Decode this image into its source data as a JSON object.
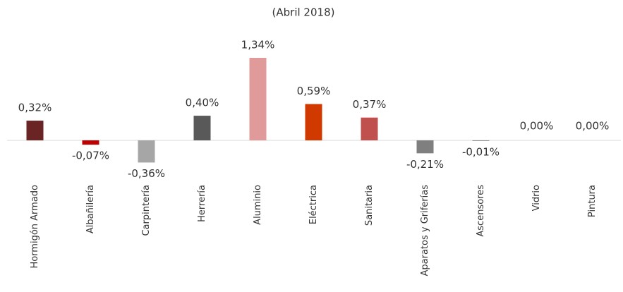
{
  "chart_data": {
    "type": "bar",
    "title": "(Abril 2018)",
    "categories": [
      "Hormigón Armado",
      "Albañilería",
      "Carpintería",
      "Herrería",
      "Aluminio",
      "Eléctrica",
      "Sanitaria",
      "Aparatos y Griferías",
      "Ascensores",
      "Vidrio",
      "Pintura"
    ],
    "values": [
      0.32,
      -0.07,
      -0.36,
      0.4,
      1.34,
      0.59,
      0.37,
      -0.21,
      -0.01,
      0.0,
      0.0
    ],
    "value_labels": [
      "0,32%",
      "-0,07%",
      "-0,36%",
      "0,40%",
      "1,34%",
      "0,59%",
      "0,37%",
      "-0,21%",
      "-0,01%",
      "0,00%",
      "0,00%"
    ],
    "colors": [
      "#6b2424",
      "#c00000",
      "#a6a6a6",
      "#595959",
      "#e09a9a",
      "#d03a00",
      "#c0504d",
      "#7f7f7f",
      "#7f7f7f",
      "#7f7f7f",
      "#7f7f7f"
    ]
  }
}
